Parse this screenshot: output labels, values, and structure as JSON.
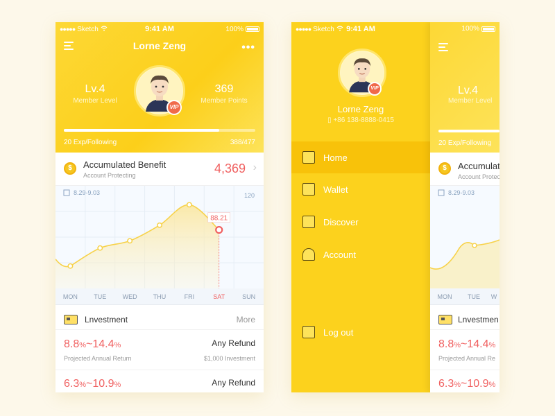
{
  "status": {
    "carrier": "Sketch",
    "time": "9:41 AM",
    "battery": "100%"
  },
  "profile": {
    "name": "Lorne Zeng",
    "level_value": "Lv.4",
    "level_label": "Member Level",
    "points_value": "369",
    "points_label": "Member Points",
    "vip": "VIP",
    "exp_label": "20 Exp/Following",
    "exp_count": "388/477",
    "exp_fraction": 0.813,
    "phone": "+86 138-8888-0415"
  },
  "benefit": {
    "title": "Accumulated Benefit",
    "subtitle": "Account Protecting",
    "value": "4,369",
    "coin_symbol": "$"
  },
  "chart_data": {
    "type": "line",
    "date_range": "8.29-9.03",
    "ymax_label": "120",
    "x": [
      "MON",
      "TUE",
      "WED",
      "THU",
      "FRI",
      "SAT",
      "SUN"
    ],
    "values": [
      28,
      58,
      70,
      96,
      130,
      88.21,
      null
    ],
    "highlight": {
      "index": 5,
      "label": "88.21"
    },
    "colors": {
      "line": "#f7d24a",
      "highlight": "#f06060"
    }
  },
  "investment": {
    "title": "Lnvestment",
    "more": "More",
    "rows": [
      {
        "rate_a": "8.8",
        "rate_b": "14.4",
        "pct": "%",
        "sep": "~",
        "sub": "Projected Annual Return",
        "refund": "Any Refund",
        "min": "$1,000 Investment"
      },
      {
        "rate_a": "6.3",
        "rate_b": "10.9",
        "pct": "%",
        "sep": "~",
        "sub": "",
        "refund": "Any Refund",
        "min": ""
      }
    ]
  },
  "menu": {
    "items": [
      {
        "label": "Home",
        "icon": "home-icon",
        "active": true
      },
      {
        "label": "Wallet",
        "icon": "wallet-icon",
        "active": false
      },
      {
        "label": "Discover",
        "icon": "discover-icon",
        "active": false
      },
      {
        "label": "Account",
        "icon": "account-icon",
        "active": false
      }
    ],
    "logout": "Log out"
  },
  "peek": {
    "battery": "100%",
    "level_value": "Lv.4",
    "level_label": "Member Level",
    "exp_label": "20 Exp/Following",
    "benefit_title": "Accumulat",
    "benefit_sub": "Account Protec",
    "date_range": "8.29-9.03",
    "days": [
      "MON",
      "TUE",
      "W"
    ],
    "invest_title": "Lnvestmen",
    "row1_rate_a": "8.8",
    "row1_rate_b": "14.4",
    "row1_sub": "Projected Annual Re",
    "row2_rate_a": "6.3",
    "row2_rate_b": "10.9"
  }
}
